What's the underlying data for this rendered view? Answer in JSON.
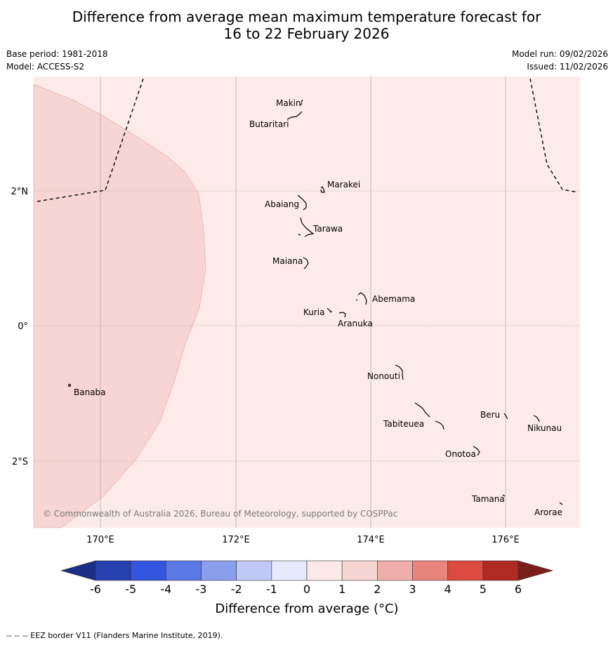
{
  "title_line1": "Difference from average mean maximum temperature forecast for",
  "title_line2": "16 to 22 February 2026",
  "base_period": "Base period: 1981-2018",
  "model": "Model: ACCESS-S2",
  "model_run": "Model run: 09/02/2026",
  "issued": "Issued: 11/02/2026",
  "copyright": "© Commonwealth of Australia 2026, Bureau of Meteorology, supported by COSPPac",
  "footnote": "-- -- -- EEZ border V11 (Flanders Marine Institute, 2019).",
  "lon_ticks": [
    "170°E",
    "172°E",
    "174°E",
    "176°E"
  ],
  "lat_ticks": [
    "2°N",
    "0°",
    "2°S"
  ],
  "islands": {
    "makin": "Makin",
    "butaritari": "Butaritari",
    "marakei": "Marakei",
    "abaiang": "Abaiang",
    "tarawa": "Tarawa",
    "maiana": "Maiana",
    "abemama": "Abemama",
    "kuria": "Kuria",
    "aranuka": "Aranuka",
    "banaba": "Banaba",
    "nonouti": "Nonouti",
    "beru": "Beru",
    "nikunau": "Nikunau",
    "tabiteuea": "Tabiteuea",
    "onotoa": "Onotoa",
    "tamana": "Tamana",
    "arorae": "Arorae"
  },
  "colorbar": {
    "title": "Difference from average (°C)",
    "ticks": [
      "-6",
      "-5",
      "-4",
      "-3",
      "-2",
      "-1",
      "0",
      "1",
      "2",
      "3",
      "4",
      "5",
      "6"
    ],
    "colors": [
      "#2640b0",
      "#3355e0",
      "#5a78e6",
      "#8a9eee",
      "#c0c9f5",
      "#e6eafc",
      "#fce9e8",
      "#f7d5d3",
      "#efaeaa",
      "#e9847d",
      "#dd4a3f",
      "#ae2a23"
    ],
    "low_extend_color": "#1b2e86",
    "high_extend_color": "#7a1f1a"
  },
  "map_colors": {
    "background_band": "#fcebe9",
    "warmer_band": "#f7d5d3"
  }
}
